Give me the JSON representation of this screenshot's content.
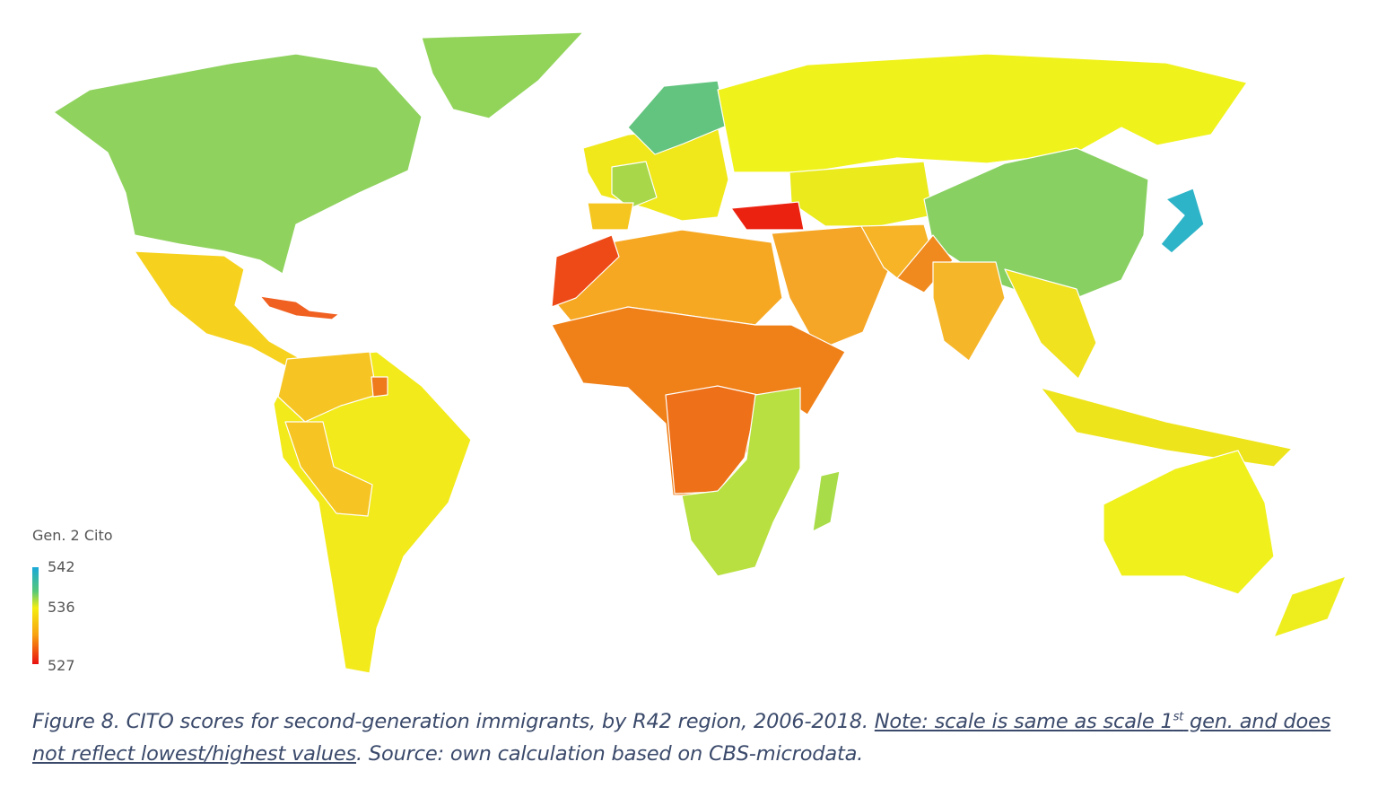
{
  "legend": {
    "title": "Gen. 2 Cito",
    "ticks": [
      "542",
      "536",
      "527"
    ],
    "scale_min": 527,
    "scale_mid": 536,
    "scale_max": 542,
    "colors": {
      "high": "#1aa8d8",
      "mid": "#f4ee10",
      "low": "#e81010"
    }
  },
  "region_colors": {
    "north-america": "#8fd25e",
    "greenland": "#92d45a",
    "mexico-central-america": "#f6d21e",
    "caribbean": "#f06020",
    "northern-south-america": "#f6c524",
    "south-america": "#f2ea1a",
    "suriname": "#ee7a1c",
    "scandinavia": "#62c47e",
    "europe": "#f0e81a",
    "france": "#a8d84a",
    "iberia": "#f5c620",
    "russia": "#f0f21c",
    "central-asia": "#eaea1c",
    "china": "#88d062",
    "japan": "#2eb4c8",
    "turkey": "#ec2210",
    "middle-east": "#f5a626",
    "iran": "#f6b426",
    "pakistan": "#f08a1e",
    "india": "#f6b62a",
    "southeast-asia": "#f0e21e",
    "indonesia": "#eee41c",
    "australia": "#f0f01c",
    "new-zealand": "#eeee1e",
    "north-africa": "#f6a822",
    "morocco": "#ee4a18",
    "west-central-africa": "#f08018",
    "central-africa": "#ee7018",
    "east-southern-africa": "#b8e040",
    "madagascar": "#a8dc48"
  },
  "caption": {
    "prefix": "Figure 8. CITO scores for second-generation immigrants, by R42 region, 2006-2018. ",
    "note_a": "Note: scale is same as scale 1",
    "note_sup": "st",
    "note_b": " gen. and does not reflect lowest/highest values",
    "suffix": ". Source: own calculation based on CBS-microdata."
  }
}
